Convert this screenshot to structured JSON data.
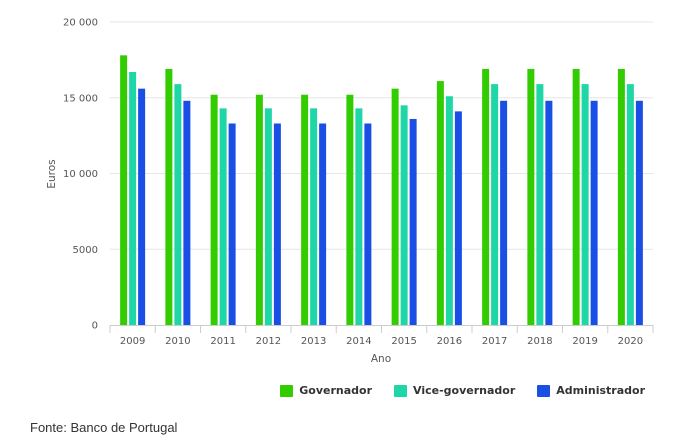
{
  "chart_data": {
    "type": "bar",
    "xlabel": "Ano",
    "ylabel": "Euros",
    "ylim": [
      0,
      20000
    ],
    "yticks": [
      {
        "value": 0,
        "label": "0"
      },
      {
        "value": 5000,
        "label": "5000"
      },
      {
        "value": 10000,
        "label": "10 000"
      },
      {
        "value": 15000,
        "label": "15 000"
      },
      {
        "value": 20000,
        "label": "20 000"
      }
    ],
    "grid": true,
    "legend_position": "bottom-right",
    "categories": [
      "2009",
      "2010",
      "2011",
      "2012",
      "2013",
      "2014",
      "2015",
      "2016",
      "2017",
      "2018",
      "2019",
      "2020"
    ],
    "series": [
      {
        "name": "Governador",
        "color": "#33cc00",
        "values": [
          17800,
          16900,
          15200,
          15200,
          15200,
          15200,
          15600,
          16100,
          16900,
          16900,
          16900,
          16900
        ]
      },
      {
        "name": "Vice-governador",
        "color": "#1fd6a6",
        "values": [
          16700,
          15900,
          14300,
          14300,
          14300,
          14300,
          14500,
          15100,
          15900,
          15900,
          15900,
          15900
        ]
      },
      {
        "name": "Administrador",
        "color": "#1a4fe6",
        "values": [
          15600,
          14800,
          13300,
          13300,
          13300,
          13300,
          13600,
          14100,
          14800,
          14800,
          14800,
          14800
        ]
      }
    ]
  },
  "source": "Fonte: Banco de Portugal"
}
